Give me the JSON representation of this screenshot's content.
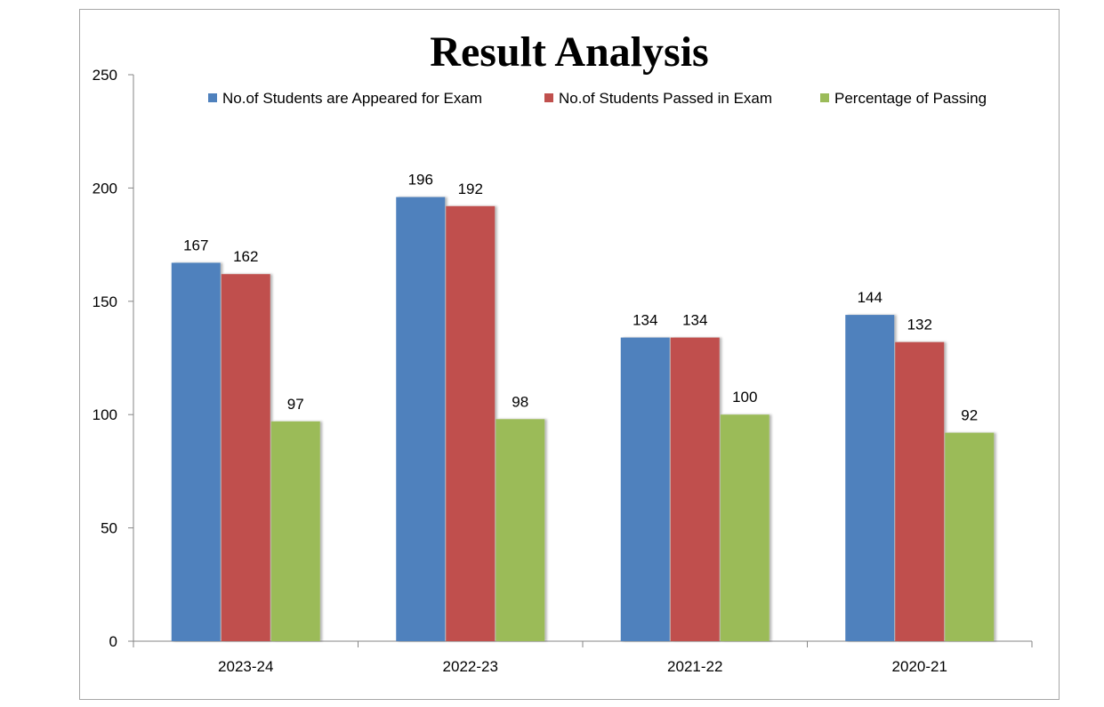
{
  "chart_data": {
    "type": "bar",
    "title": "Result Analysis",
    "xlabel": "",
    "ylabel": "",
    "categories": [
      "2023-24",
      "2022-23",
      "2021-22",
      "2020-21"
    ],
    "series": [
      {
        "name": "No.of Students are Appeared for Exam",
        "color": "#4f81bd",
        "values": [
          167,
          196,
          134,
          144
        ]
      },
      {
        "name": "No.of Students Passed in Exam",
        "color": "#c0504d",
        "values": [
          162,
          192,
          134,
          132
        ]
      },
      {
        "name": "Percentage of Passing",
        "color": "#9bbb59",
        "values": [
          97,
          98,
          100,
          92
        ]
      }
    ],
    "ylim": [
      0,
      250
    ],
    "yticks": [
      "0",
      "50",
      "100",
      "150",
      "200",
      "250"
    ],
    "grid": false,
    "legend_position": "top",
    "data_labels": true
  }
}
